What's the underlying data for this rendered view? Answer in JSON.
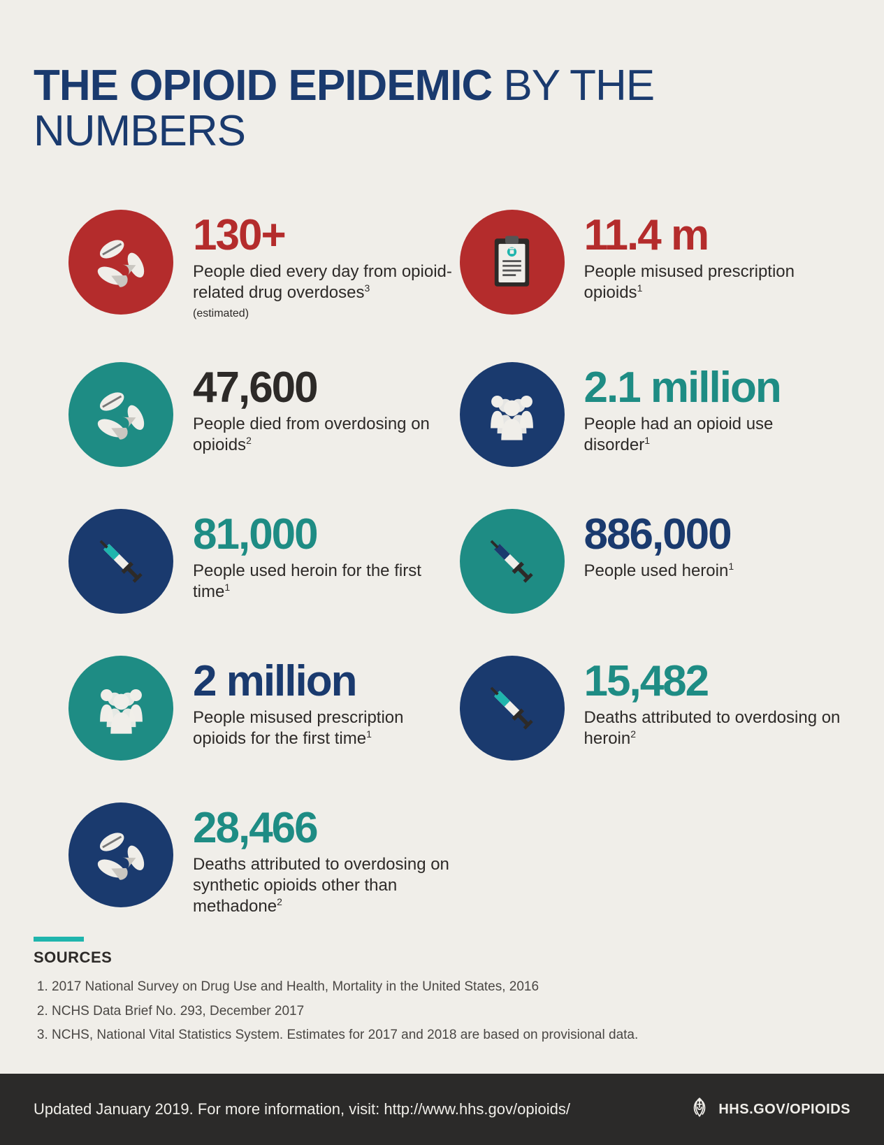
{
  "colors": {
    "background": "#f0eee9",
    "navy": "#1a3a6e",
    "teal": "#1e8c84",
    "red": "#b42c2c",
    "dark_text": "#2d2a28",
    "footer_bg": "#2b2a29"
  },
  "title": {
    "bold": "THE OPIOID EPIDEMIC",
    "light": " BY THE NUMBERS",
    "color": "#1a3a6e"
  },
  "stats": [
    {
      "id": "deaths-per-day",
      "icon": "pills",
      "circle_color": "#b42c2c",
      "num": "130+",
      "num_color": "#b42c2c",
      "desc": "People died every day from opioid-related drug overdoses",
      "sup": "3",
      "sub": "(estimated)"
    },
    {
      "id": "misused-rx",
      "icon": "clipboard",
      "circle_color": "#b42c2c",
      "num": "11.4 m",
      "num_color": "#b42c2c",
      "desc": "People misused prescription opioids",
      "sup": "1",
      "sub": ""
    },
    {
      "id": "died-overdose",
      "icon": "pills",
      "circle_color": "#1e8c84",
      "num": "47,600",
      "num_color": "#2d2a28",
      "desc": "People died from overdosing on opioids",
      "sup": "2",
      "sub": ""
    },
    {
      "id": "use-disorder",
      "icon": "people",
      "circle_color": "#1a3a6e",
      "num": "2.1 million",
      "num_color": "#1e8c84",
      "desc": "People had an opioid use disorder",
      "sup": "1",
      "sub": ""
    },
    {
      "id": "heroin-first-time",
      "icon": "syringe",
      "circle_color": "#1a3a6e",
      "num": "81,000",
      "num_color": "#1e8c84",
      "desc": "People used heroin for the first time",
      "sup": "1",
      "sub": ""
    },
    {
      "id": "used-heroin",
      "icon": "syringe",
      "circle_color": "#1e8c84",
      "num": "886,000",
      "num_color": "#1a3a6e",
      "desc": "People used heroin",
      "sup": "1",
      "sub": ""
    },
    {
      "id": "misused-first-time",
      "icon": "people",
      "circle_color": "#1e8c84",
      "num": "2 million",
      "num_color": "#1a3a6e",
      "desc": "People misused prescription opioids for the first time",
      "sup": "1",
      "sub": ""
    },
    {
      "id": "heroin-deaths",
      "icon": "syringe",
      "circle_color": "#1a3a6e",
      "num": "15,482",
      "num_color": "#1e8c84",
      "desc": "Deaths attributed to overdosing on heroin",
      "sup": "2",
      "sub": ""
    },
    {
      "id": "synthetic-deaths",
      "icon": "pills",
      "circle_color": "#1a3a6e",
      "num": "28,466",
      "num_color": "#1e8c84",
      "desc": "Deaths attributed to overdosing on synthetic opioids other than methadone",
      "sup": "2",
      "sub": ""
    }
  ],
  "sources": {
    "title": "SOURCES",
    "bar_color": "#1fb5ad",
    "items": [
      "2017 National Survey on Drug Use and Health, Mortality in the United States, 2016",
      "NCHS Data Brief No. 293, December 2017",
      "NCHS, National Vital Statistics System. Estimates for 2017 and 2018 are based on provisional data."
    ]
  },
  "footer": {
    "text": "Updated January 2019. For more information, visit: http://www.hhs.gov/opioids/",
    "logo_text": "HHS.GOV/OPIOIDS"
  }
}
